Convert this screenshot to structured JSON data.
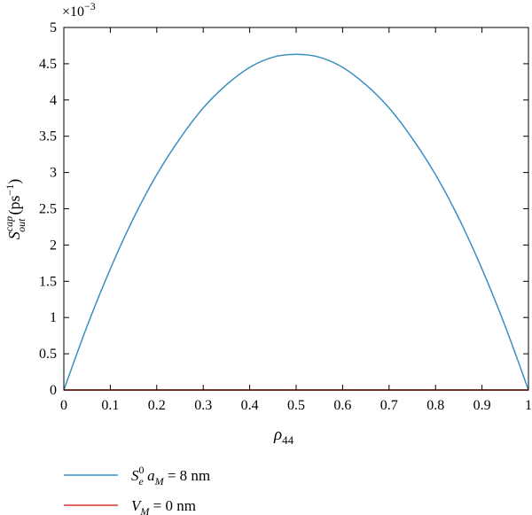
{
  "chart_data": {
    "type": "line",
    "x_range": [
      0,
      1
    ],
    "y_range": [
      0,
      5
    ],
    "y_multiplier_label": {
      "base": "×10",
      "exponent": "−3"
    },
    "x_ticks": [
      "0",
      "0.1",
      "0.2",
      "0.3",
      "0.4",
      "0.5",
      "0.6",
      "0.7",
      "0.8",
      "0.9",
      "1"
    ],
    "y_ticks": [
      "0",
      "0.5",
      "1",
      "1.5",
      "2",
      "2.5",
      "3",
      "3.5",
      "4",
      "4.5",
      "5"
    ],
    "xlabel": {
      "main": "ρ",
      "sub": "44"
    },
    "ylabel": {
      "main": "S",
      "sup": "cap",
      "sub": "out",
      "unit": "(ps",
      "unit_sup": "−1",
      "unit_close": ")"
    },
    "grid": false,
    "legend_position": "below",
    "series": [
      {
        "name": "S0e aM = 8 nm",
        "label_parts": {
          "main": "S",
          "sup": "0",
          "sub": "e",
          "rest": " a",
          "rest_sub": "M",
          "tail": " = 8 nm"
        },
        "color": "#3a8fc0",
        "x": [
          0,
          0.05,
          0.1,
          0.15,
          0.2,
          0.25,
          0.3,
          0.35,
          0.4,
          0.45,
          0.5,
          0.55,
          0.6,
          0.65,
          0.7,
          0.75,
          0.8,
          0.85,
          0.9,
          0.95,
          1
        ],
        "y": [
          0,
          0.88,
          1.67,
          2.37,
          2.97,
          3.47,
          3.89,
          4.21,
          4.45,
          4.59,
          4.63,
          4.59,
          4.45,
          4.21,
          3.89,
          3.47,
          2.97,
          2.37,
          1.67,
          0.88,
          0
        ]
      },
      {
        "name": "VM = 0 nm",
        "label_parts": {
          "main": "V",
          "sub": "M",
          "tail": " = 0 nm"
        },
        "color": "#d9382b",
        "x": [
          0,
          1
        ],
        "y": [
          0,
          0
        ]
      }
    ]
  }
}
